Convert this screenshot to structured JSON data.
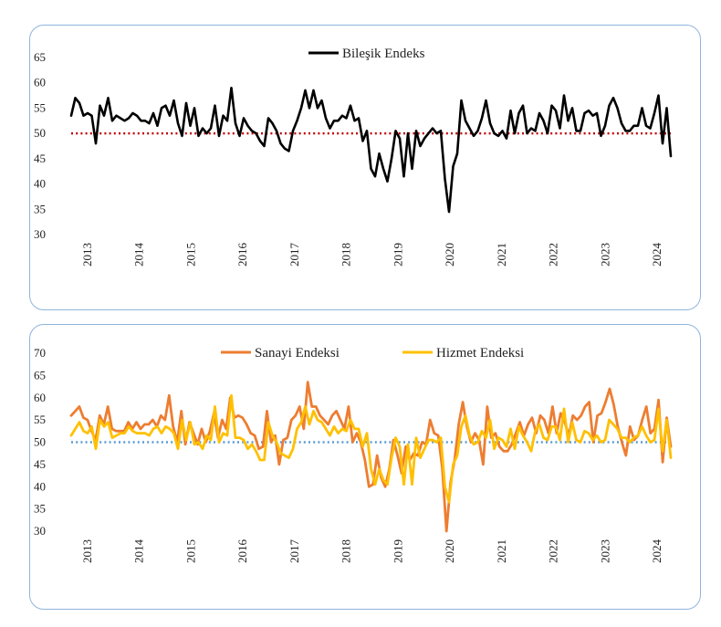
{
  "chart_data": [
    {
      "type": "line",
      "ylim": [
        30,
        65
      ],
      "yticks": [
        30,
        35,
        40,
        45,
        50,
        55,
        60,
        65
      ],
      "xlabels": [
        "2013",
        "2014",
        "2015",
        "2016",
        "2017",
        "2018",
        "2019",
        "2020",
        "2021",
        "2022",
        "2023",
        "2024"
      ],
      "xstart": 2013.0,
      "xend": 2024.58,
      "reference": {
        "value": 50,
        "color": "#c00000",
        "style": "dotted"
      },
      "series": [
        {
          "name": "Bileşik Endeks",
          "color": "#000000",
          "values": [
            53.5,
            57.0,
            56.0,
            53.5,
            54.0,
            53.5,
            48.0,
            55.5,
            53.5,
            57.0,
            52.5,
            53.5,
            53.0,
            52.5,
            53.0,
            54.0,
            53.5,
            52.5,
            52.5,
            52.0,
            54.0,
            51.5,
            55.0,
            55.5,
            53.5,
            56.5,
            52.0,
            49.5,
            56.0,
            51.5,
            55.0,
            49.5,
            51.0,
            50.0,
            51.0,
            55.5,
            49.5,
            53.5,
            52.5,
            59.0,
            52.0,
            49.5,
            53.0,
            51.5,
            50.5,
            50.0,
            48.5,
            47.5,
            53.0,
            52.0,
            50.5,
            48.0,
            47.0,
            46.5,
            50.5,
            52.5,
            55.0,
            58.5,
            55.0,
            58.5,
            55.0,
            56.5,
            53.0,
            51.0,
            52.5,
            52.5,
            53.5,
            53.0,
            55.5,
            52.5,
            53.0,
            48.5,
            50.5,
            43.0,
            41.5,
            46.0,
            43.0,
            40.5,
            45.0,
            50.5,
            49.0,
            41.5,
            50.0,
            43.0,
            50.5,
            47.5,
            49.0,
            50.0,
            51.0,
            50.0,
            50.5,
            41.0,
            34.5,
            43.5,
            46.0,
            56.5,
            52.5,
            51.0,
            49.5,
            50.5,
            53.0,
            56.5,
            52.0,
            50.0,
            49.5,
            50.5,
            49.0,
            54.5,
            50.0,
            54.0,
            55.5,
            50.0,
            51.0,
            50.5,
            54.0,
            52.5,
            50.0,
            55.5,
            54.5,
            51.0,
            57.5,
            52.5,
            55.0,
            50.5,
            50.5,
            54.0,
            54.5,
            53.5,
            54.0,
            49.5,
            51.5,
            55.5,
            57.0,
            55.0,
            52.0,
            50.5,
            50.5,
            51.5,
            51.5,
            55.0,
            51.5,
            51.0,
            54.0,
            57.5,
            48.0,
            55.0,
            45.5
          ]
        }
      ]
    },
    {
      "type": "line",
      "ylim": [
        30,
        70
      ],
      "yticks": [
        30,
        35,
        40,
        45,
        50,
        55,
        60,
        65,
        70
      ],
      "xlabels": [
        "2013",
        "2014",
        "2015",
        "2016",
        "2017",
        "2018",
        "2019",
        "2020",
        "2021",
        "2022",
        "2023",
        "2024"
      ],
      "xstart": 2013.0,
      "xend": 2024.58,
      "reference": {
        "value": 50,
        "color": "#5b9bd5",
        "style": "dotted"
      },
      "series": [
        {
          "name": "Sanayi Endeksi",
          "color": "#ed7d31",
          "values": [
            56.0,
            57.0,
            58.0,
            55.5,
            55.0,
            52.5,
            50.5,
            56.0,
            54.0,
            58.0,
            53.0,
            52.5,
            52.5,
            52.5,
            54.5,
            53.0,
            54.5,
            53.0,
            54.0,
            54.0,
            55.0,
            53.5,
            56.0,
            55.0,
            60.5,
            53.5,
            50.0,
            57.0,
            49.5,
            54.5,
            52.0,
            49.5,
            53.0,
            50.0,
            52.5,
            56.5,
            51.0,
            55.0,
            53.0,
            60.0,
            55.5,
            56.0,
            55.5,
            54.0,
            52.0,
            51.5,
            48.5,
            49.0,
            57.0,
            50.0,
            51.5,
            45.0,
            50.5,
            51.0,
            55.0,
            56.0,
            58.0,
            53.0,
            63.5,
            58.0,
            58.0,
            56.0,
            55.0,
            54.0,
            56.0,
            57.0,
            55.0,
            53.0,
            58.0,
            50.0,
            52.0,
            50.0,
            46.0,
            40.0,
            40.5,
            47.0,
            42.0,
            40.0,
            44.0,
            50.5,
            47.0,
            43.0,
            49.0,
            46.0,
            47.5,
            47.0,
            50.0,
            49.5,
            55.0,
            52.0,
            51.5,
            44.0,
            30.0,
            41.0,
            46.0,
            54.0,
            59.0,
            53.5,
            50.0,
            52.0,
            50.5,
            45.0,
            58.0,
            51.0,
            52.0,
            49.0,
            48.0,
            48.0,
            49.5,
            52.0,
            54.5,
            51.5,
            54.0,
            55.5,
            52.0,
            56.0,
            55.0,
            52.0,
            58.0,
            52.0,
            56.5,
            54.5,
            51.5,
            56.0,
            55.0,
            56.0,
            58.0,
            59.0,
            50.0,
            56.0,
            56.5,
            59.0,
            62.0,
            58.5,
            53.5,
            50.0,
            47.0,
            53.5,
            50.5,
            51.5,
            55.0,
            58.0,
            52.0,
            53.0,
            59.5,
            45.5,
            55.5,
            49.0
          ]
        },
        {
          "name": "Hizmet Endeksi",
          "color": "#ffc000",
          "values": [
            51.5,
            53.0,
            54.5,
            52.5,
            52.0,
            53.5,
            48.5,
            55.0,
            53.5,
            54.5,
            51.0,
            51.5,
            52.0,
            52.0,
            53.5,
            52.5,
            52.0,
            52.0,
            52.0,
            51.5,
            53.0,
            53.5,
            52.0,
            53.5,
            53.0,
            52.0,
            48.5,
            55.0,
            50.5,
            54.5,
            49.5,
            50.0,
            48.5,
            51.5,
            50.5,
            58.0,
            50.0,
            52.0,
            51.5,
            60.5,
            51.0,
            51.0,
            50.5,
            48.5,
            49.5,
            48.0,
            46.0,
            46.0,
            54.5,
            51.5,
            50.0,
            47.5,
            47.0,
            46.5,
            48.5,
            53.0,
            54.5,
            58.0,
            54.0,
            57.0,
            55.0,
            54.5,
            53.0,
            51.5,
            53.5,
            52.0,
            53.0,
            52.5,
            55.0,
            53.0,
            53.0,
            49.0,
            52.0,
            44.0,
            40.5,
            44.0,
            41.5,
            40.5,
            46.5,
            51.0,
            49.0,
            40.5,
            49.5,
            40.5,
            51.0,
            46.5,
            48.5,
            50.5,
            50.5,
            50.0,
            51.0,
            40.0,
            36.5,
            45.0,
            47.0,
            53.5,
            56.0,
            51.5,
            49.5,
            50.0,
            52.5,
            51.0,
            55.0,
            48.5,
            51.0,
            50.5,
            49.0,
            53.0,
            48.5,
            53.5,
            51.5,
            50.0,
            48.0,
            52.5,
            54.0,
            51.0,
            50.5,
            53.5,
            53.5,
            50.5,
            57.5,
            50.0,
            54.5,
            50.5,
            50.0,
            52.5,
            52.0,
            50.5,
            51.5,
            50.0,
            50.5,
            55.0,
            54.0,
            53.0,
            51.0,
            51.0,
            50.0,
            51.0,
            51.5,
            53.5,
            51.5,
            50.0,
            50.5,
            57.5,
            48.0,
            55.0,
            46.5
          ]
        }
      ]
    }
  ]
}
